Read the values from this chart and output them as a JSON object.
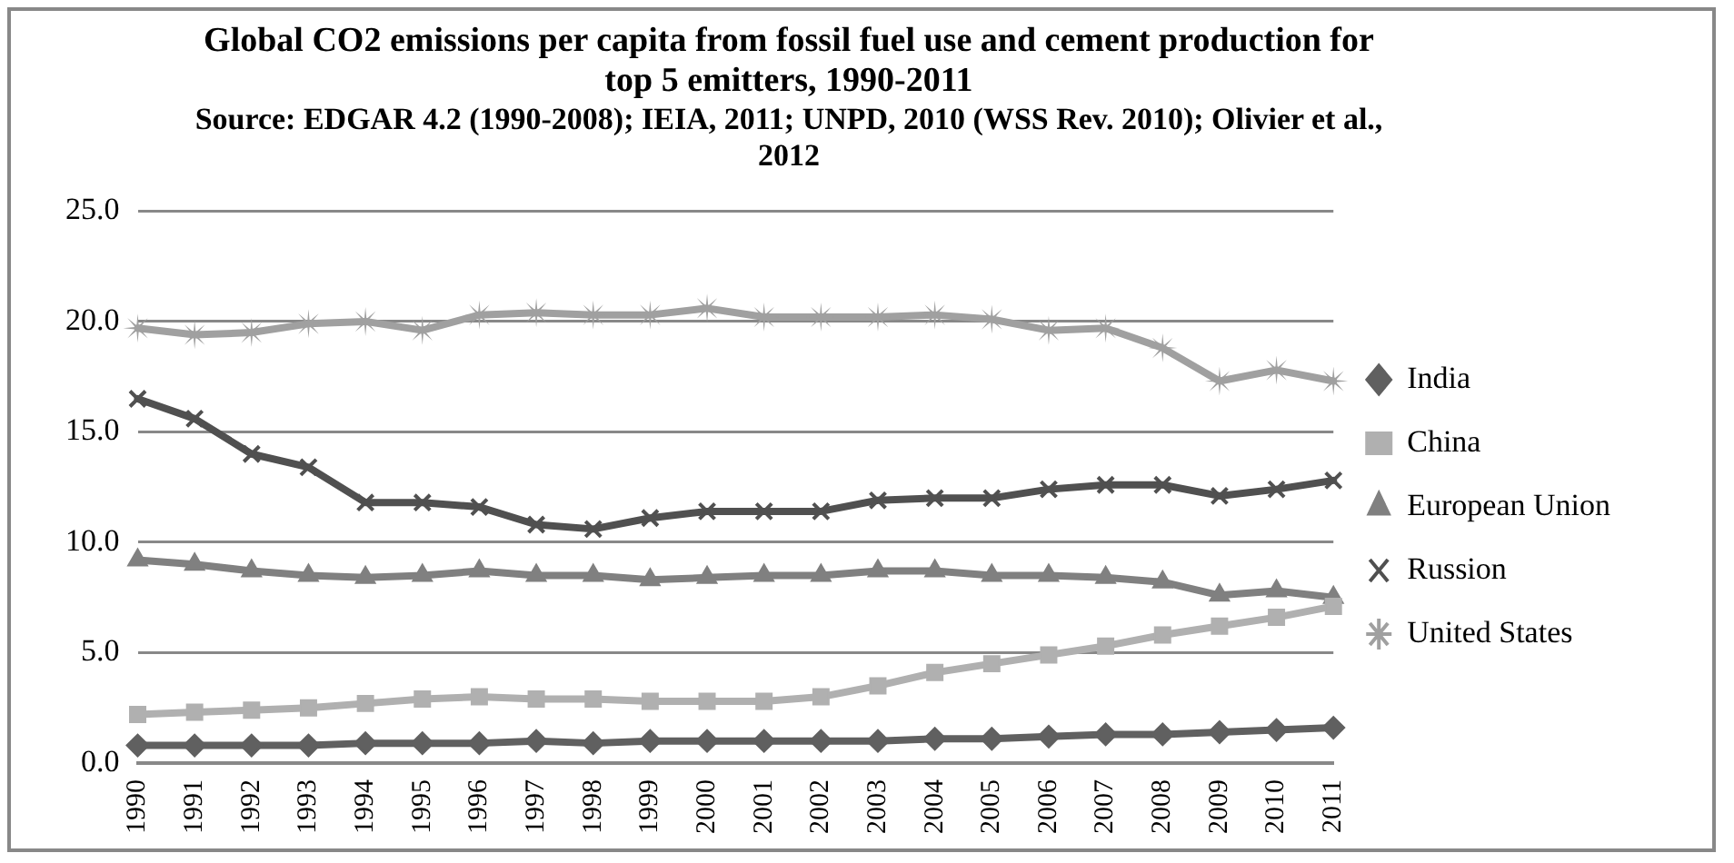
{
  "chart_data": {
    "type": "line",
    "title": "Global CO2 emissions per capita from fossil fuel use and cement production for top 5 emitters, 1990-2011",
    "subtitle": "Source: EDGAR 4.2 (1990-2008); IEIA, 2011; UNPD, 2010 (WSS Rev. 2010); Olivier et al., 2012",
    "categories": [
      "1990",
      "1991",
      "1992",
      "1993",
      "1994",
      "1995",
      "1996",
      "1997",
      "1998",
      "1999",
      "2000",
      "2001",
      "2002",
      "2003",
      "2004",
      "2005",
      "2006",
      "2007",
      "2008",
      "2009",
      "2010",
      "2011"
    ],
    "series": [
      {
        "name": "India",
        "color": "#606060",
        "marker": "diamond",
        "values": [
          0.8,
          0.8,
          0.8,
          0.8,
          0.9,
          0.9,
          0.9,
          1.0,
          0.9,
          1.0,
          1.0,
          1.0,
          1.0,
          1.0,
          1.1,
          1.1,
          1.2,
          1.3,
          1.3,
          1.4,
          1.5,
          1.6
        ]
      },
      {
        "name": "China",
        "color": "#b0b0b0",
        "marker": "square",
        "values": [
          2.2,
          2.3,
          2.4,
          2.5,
          2.7,
          2.9,
          3.0,
          2.9,
          2.9,
          2.8,
          2.8,
          2.8,
          3.0,
          3.5,
          4.1,
          4.5,
          4.9,
          5.3,
          5.8,
          6.2,
          6.6,
          7.1
        ]
      },
      {
        "name": "European Union",
        "color": "#808080",
        "marker": "triangle",
        "values": [
          9.2,
          9.0,
          8.7,
          8.5,
          8.4,
          8.5,
          8.7,
          8.5,
          8.5,
          8.3,
          8.4,
          8.5,
          8.5,
          8.7,
          8.7,
          8.5,
          8.5,
          8.4,
          8.2,
          7.6,
          7.8,
          7.5
        ]
      },
      {
        "name": "Russion",
        "color": "#505050",
        "marker": "cross",
        "values": [
          16.5,
          15.6,
          14.0,
          13.4,
          11.8,
          11.8,
          11.6,
          10.8,
          10.6,
          11.1,
          11.4,
          11.4,
          11.4,
          11.9,
          12.0,
          12.0,
          12.4,
          12.6,
          12.6,
          12.1,
          12.4,
          12.8
        ]
      },
      {
        "name": "United States",
        "color": "#a0a0a0",
        "marker": "star",
        "values": [
          19.7,
          19.4,
          19.5,
          19.9,
          20.0,
          19.6,
          20.3,
          20.4,
          20.3,
          20.3,
          20.6,
          20.2,
          20.2,
          20.2,
          20.3,
          20.1,
          19.6,
          19.7,
          18.8,
          17.3,
          17.8,
          17.3
        ]
      }
    ],
    "ylim": [
      0,
      25
    ],
    "yticks": [
      {
        "value": 0,
        "label": "0.0"
      },
      {
        "value": 5,
        "label": "5.0"
      },
      {
        "value": 10,
        "label": "10.0"
      },
      {
        "value": 15,
        "label": "15.0"
      },
      {
        "value": 20,
        "label": "20.0"
      },
      {
        "value": 25,
        "label": "25.0"
      }
    ],
    "grid": "y",
    "legend": "right"
  }
}
